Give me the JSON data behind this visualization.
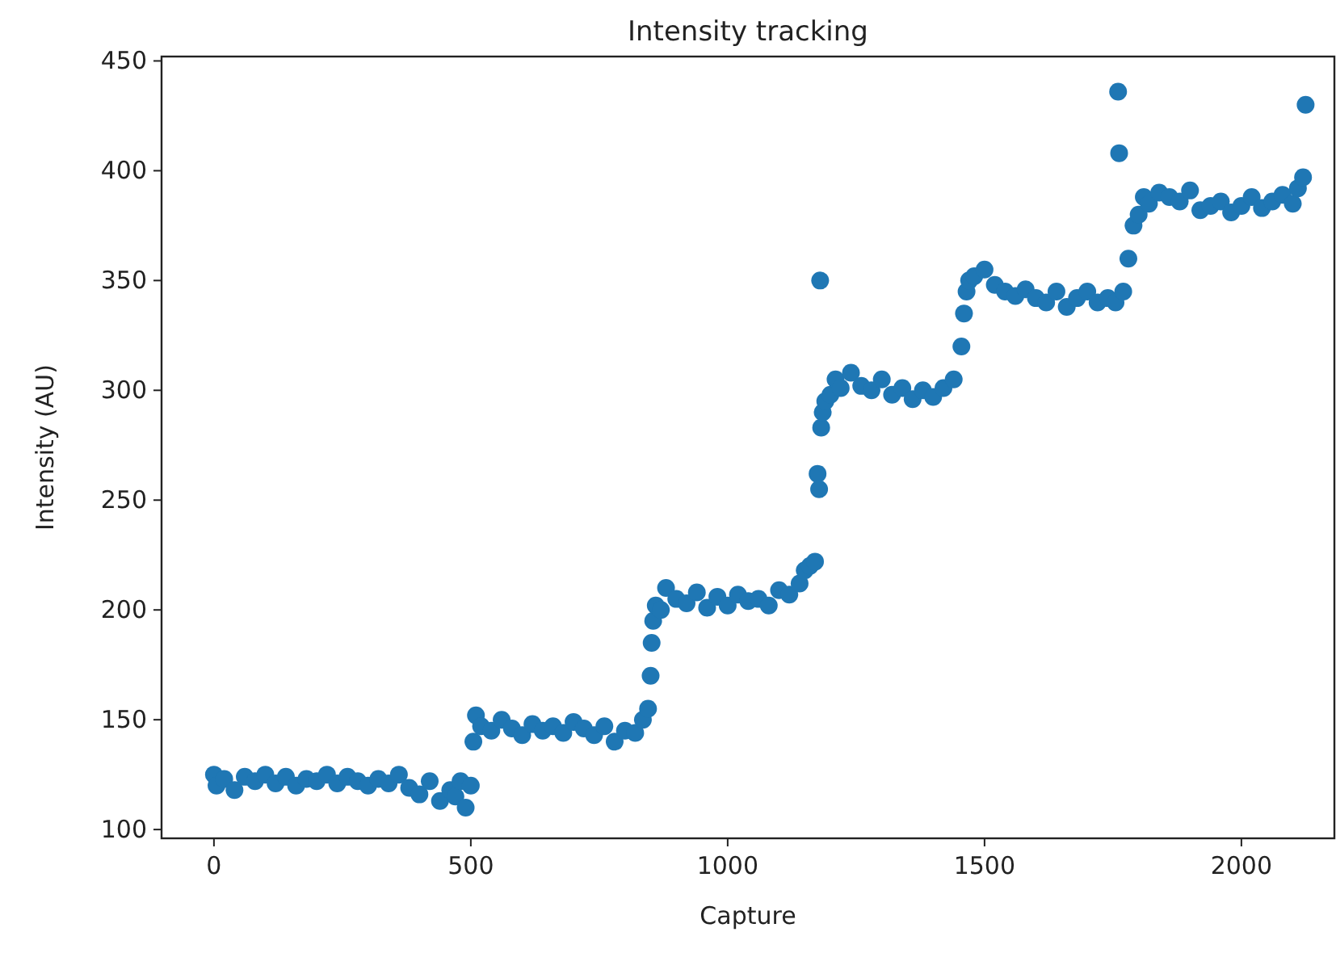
{
  "chart_data": {
    "type": "scatter",
    "title": "Intensity tracking",
    "xlabel": "Capture",
    "ylabel": "Intensity (AU)",
    "xlim": [
      -102,
      2181
    ],
    "ylim": [
      96,
      452
    ],
    "xticks": [
      0,
      500,
      1000,
      1500,
      2000
    ],
    "yticks": [
      100,
      150,
      200,
      250,
      300,
      350,
      400,
      450
    ],
    "grid": false,
    "marker": "circle",
    "series": [
      {
        "color": "#1f77b4",
        "x": [
          0,
          5,
          20,
          40,
          60,
          80,
          100,
          120,
          140,
          160,
          180,
          200,
          220,
          240,
          260,
          280,
          300,
          320,
          340,
          360,
          380,
          400,
          420,
          440,
          460,
          470,
          480,
          490,
          500,
          505,
          510,
          520,
          540,
          560,
          580,
          600,
          620,
          640,
          660,
          680,
          700,
          720,
          740,
          760,
          780,
          800,
          820,
          835,
          845,
          850,
          852,
          855,
          860,
          870,
          880,
          900,
          920,
          940,
          960,
          980,
          1000,
          1020,
          1040,
          1060,
          1080,
          1100,
          1120,
          1140,
          1150,
          1160,
          1170,
          1175,
          1178,
          1180,
          1182,
          1185,
          1190,
          1200,
          1210,
          1220,
          1240,
          1260,
          1280,
          1300,
          1320,
          1340,
          1360,
          1380,
          1400,
          1420,
          1440,
          1455,
          1460,
          1465,
          1470,
          1480,
          1500,
          1520,
          1540,
          1560,
          1580,
          1600,
          1620,
          1640,
          1660,
          1680,
          1700,
          1720,
          1740,
          1755,
          1760,
          1762,
          1770,
          1780,
          1790,
          1800,
          1810,
          1820,
          1840,
          1860,
          1880,
          1900,
          1920,
          1940,
          1960,
          1980,
          2000,
          2020,
          2040,
          2060,
          2080,
          2100,
          2110,
          2120,
          2125
        ],
        "values": [
          125,
          120,
          123,
          118,
          124,
          122,
          125,
          121,
          124,
          120,
          123,
          122,
          125,
          121,
          124,
          122,
          120,
          123,
          121,
          125,
          119,
          116,
          122,
          113,
          118,
          115,
          122,
          110,
          120,
          140,
          152,
          147,
          145,
          150,
          146,
          143,
          148,
          145,
          147,
          144,
          149,
          146,
          143,
          147,
          140,
          145,
          144,
          150,
          155,
          170,
          185,
          195,
          202,
          200,
          210,
          205,
          203,
          208,
          201,
          206,
          202,
          207,
          204,
          205,
          202,
          209,
          207,
          212,
          218,
          220,
          222,
          262,
          255,
          350,
          283,
          290,
          295,
          298,
          305,
          301,
          308,
          302,
          300,
          305,
          298,
          301,
          296,
          300,
          297,
          301,
          305,
          320,
          335,
          345,
          350,
          352,
          355,
          348,
          345,
          343,
          346,
          342,
          340,
          345,
          338,
          342,
          345,
          340,
          342,
          340,
          436,
          408,
          345,
          360,
          375,
          380,
          388,
          385,
          390,
          388,
          386,
          391,
          382,
          384,
          386,
          381,
          384,
          388,
          383,
          386,
          389,
          385,
          392,
          397,
          430
        ]
      }
    ]
  }
}
